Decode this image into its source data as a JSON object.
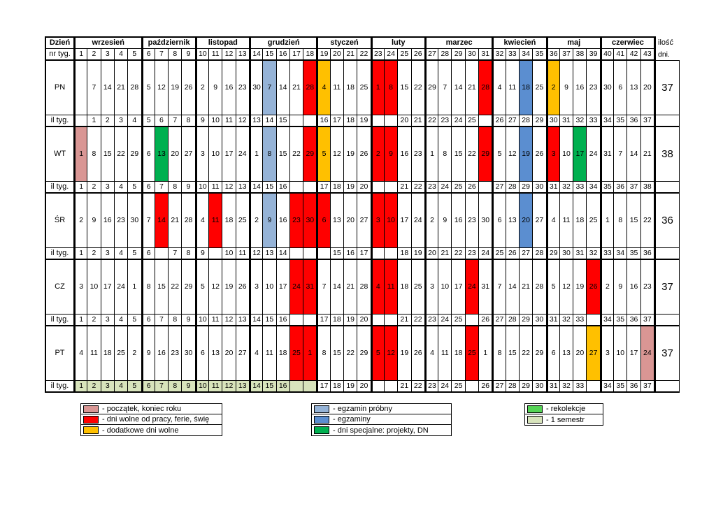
{
  "colors": {
    "pink": "#d99694",
    "red": "#ff0000",
    "orange": "#ffc000",
    "probny": "#95b3d7",
    "egzamin": "#5b8ed0",
    "green": "#00b050",
    "rekolekcje": "#55d455",
    "semestr": "#d8e4bc"
  },
  "table": {
    "corner_label": "Dzień",
    "nr_tyg_label": "nr tyg.",
    "il_tyg_label": "il tyg.",
    "ilosc_label": "ilość",
    "dni_label": "dni.",
    "months": [
      {
        "name": "wrzesień",
        "weeks": 5
      },
      {
        "name": "październik",
        "weeks": 4
      },
      {
        "name": "listopad",
        "weeks": 4
      },
      {
        "name": "grudzień",
        "weeks": 5
      },
      {
        "name": "styczeń",
        "weeks": 4
      },
      {
        "name": "luty",
        "weeks": 4
      },
      {
        "name": "marzec",
        "weeks": 5
      },
      {
        "name": "kwiecień",
        "weeks": 4
      },
      {
        "name": "maj",
        "weeks": 4
      },
      {
        "name": "czerwiec",
        "weeks": 4
      }
    ],
    "week_numbers": [
      "1",
      "2",
      "3",
      "4",
      "5",
      "6",
      "7",
      "8",
      "9",
      "10",
      "11",
      "12",
      "13",
      "14",
      "15",
      "16",
      "17",
      "18",
      "19",
      "20",
      "21",
      "22",
      "23",
      "24",
      "25",
      "26",
      "27",
      "28",
      "29",
      "30",
      "31",
      "32",
      "33",
      "34",
      "35",
      "36",
      "37",
      "38",
      "39",
      "40",
      "41",
      "42",
      "43"
    ],
    "days": [
      {
        "label": "PN",
        "total": "37",
        "values": [
          "",
          "7",
          "14",
          "21",
          "28",
          "5",
          "12",
          "19",
          "26",
          "2",
          "9",
          "16",
          "23",
          "30",
          "7",
          "14",
          "21",
          "28",
          "4",
          "11",
          "18",
          "25",
          "1",
          "8",
          "15",
          "22",
          "29",
          "7",
          "14",
          "21",
          "28",
          "4",
          "11",
          "18",
          "25",
          "2",
          "9",
          "16",
          "23",
          "30",
          "6",
          "13",
          "20"
        ],
        "colors": {
          "14": "probny",
          "17": "red",
          "18": "orange",
          "22": "red",
          "23": "red",
          "30": "red",
          "33": "egzamin",
          "35": "orange"
        },
        "il_tyg": [
          "",
          "1",
          "2",
          "3",
          "4",
          "5",
          "6",
          "7",
          "8",
          "9",
          "10",
          "11",
          "12",
          "13",
          "14",
          "15",
          "",
          "",
          "16",
          "17",
          "18",
          "19",
          "",
          "",
          "20",
          "21",
          "22",
          "23",
          "24",
          "25",
          "",
          "26",
          "27",
          "28",
          "29",
          "30",
          "31",
          "32",
          "33",
          "34",
          "35",
          "36",
          "37"
        ]
      },
      {
        "label": "WT",
        "total": "38",
        "values": [
          "1",
          "8",
          "15",
          "22",
          "29",
          "6",
          "13",
          "20",
          "27",
          "3",
          "10",
          "17",
          "24",
          "1",
          "8",
          "15",
          "22",
          "29",
          "5",
          "12",
          "19",
          "26",
          "2",
          "9",
          "16",
          "23",
          "1",
          "8",
          "15",
          "22",
          "29",
          "5",
          "12",
          "19",
          "26",
          "3",
          "10",
          "17",
          "24",
          "31",
          "7",
          "14",
          "21"
        ],
        "colors": {
          "0": "pink",
          "6": "green",
          "14": "probny",
          "17": "red",
          "18": "orange",
          "22": "red",
          "23": "red",
          "30": "red",
          "33": "egzamin",
          "35": "red",
          "37": "green"
        },
        "il_tyg": [
          "1",
          "2",
          "3",
          "4",
          "5",
          "6",
          "7",
          "8",
          "9",
          "10",
          "11",
          "12",
          "13",
          "14",
          "15",
          "16",
          "",
          "",
          "17",
          "18",
          "19",
          "20",
          "",
          "",
          "21",
          "22",
          "23",
          "24",
          "25",
          "26",
          "",
          "27",
          "28",
          "29",
          "30",
          "31",
          "32",
          "33",
          "34",
          "35",
          "36",
          "37",
          "38"
        ]
      },
      {
        "label": "ŚR",
        "total": "36",
        "values": [
          "2",
          "9",
          "16",
          "23",
          "30",
          "7",
          "14",
          "21",
          "28",
          "4",
          "11",
          "18",
          "25",
          "2",
          "9",
          "16",
          "23",
          "30",
          "6",
          "13",
          "20",
          "27",
          "3",
          "10",
          "17",
          "24",
          "2",
          "9",
          "16",
          "23",
          "30",
          "6",
          "13",
          "20",
          "27",
          "4",
          "11",
          "18",
          "25",
          "1",
          "8",
          "15",
          "22"
        ],
        "colors": {
          "6": "red",
          "10": "red",
          "14": "probny",
          "16": "red",
          "17": "red",
          "18": "red",
          "22": "red",
          "23": "red",
          "33": "egzamin"
        },
        "il_tyg": [
          "1",
          "2",
          "3",
          "4",
          "5",
          "6",
          "",
          "7",
          "8",
          "9",
          "",
          "10",
          "11",
          "12",
          "13",
          "14",
          "",
          "",
          "",
          "15",
          "16",
          "17",
          "",
          "",
          "18",
          "19",
          "20",
          "21",
          "22",
          "23",
          "24",
          "25",
          "26",
          "27",
          "28",
          "29",
          "30",
          "31",
          "32",
          "33",
          "34",
          "35",
          "36"
        ]
      },
      {
        "label": "CZ",
        "total": "37",
        "values": [
          "3",
          "10",
          "17",
          "24",
          "1",
          "8",
          "15",
          "22",
          "29",
          "5",
          "12",
          "19",
          "26",
          "3",
          "10",
          "17",
          "24",
          "31",
          "7",
          "14",
          "21",
          "28",
          "4",
          "11",
          "18",
          "25",
          "3",
          "10",
          "17",
          "24",
          "31",
          "7",
          "14",
          "21",
          "28",
          "5",
          "12",
          "19",
          "26",
          "2",
          "9",
          "16",
          "23"
        ],
        "colors": {
          "16": "red",
          "17": "red",
          "22": "red",
          "23": "red",
          "29": "red",
          "38": "red"
        },
        "il_tyg": [
          "1",
          "2",
          "3",
          "4",
          "5",
          "6",
          "7",
          "8",
          "9",
          "10",
          "11",
          "12",
          "13",
          "14",
          "15",
          "16",
          "",
          "",
          "17",
          "18",
          "19",
          "20",
          "",
          "",
          "21",
          "22",
          "23",
          "24",
          "25",
          "",
          "26",
          "27",
          "28",
          "29",
          "30",
          "31",
          "32",
          "33",
          "",
          "34",
          "35",
          "36",
          "37"
        ]
      },
      {
        "label": "PT",
        "total": "37",
        "values": [
          "4",
          "11",
          "18",
          "25",
          "2",
          "9",
          "16",
          "23",
          "30",
          "6",
          "13",
          "20",
          "27",
          "4",
          "11",
          "18",
          "25",
          "1",
          "8",
          "15",
          "22",
          "29",
          "5",
          "12",
          "19",
          "26",
          "4",
          "11",
          "18",
          "25",
          "1",
          "8",
          "15",
          "22",
          "29",
          "6",
          "13",
          "20",
          "27",
          "3",
          "10",
          "17",
          "24"
        ],
        "colors": {
          "16": "red",
          "17": "red",
          "22": "red",
          "23": "red",
          "29": "red",
          "38": "orange",
          "42": "pink"
        },
        "il_tyg": [
          "1",
          "2",
          "3",
          "4",
          "5",
          "6",
          "7",
          "8",
          "9",
          "10",
          "11",
          "12",
          "13",
          "14",
          "15",
          "16",
          "",
          "",
          "17",
          "18",
          "19",
          "20",
          "",
          "",
          "21",
          "22",
          "23",
          "24",
          "25",
          "",
          "26",
          "27",
          "28",
          "29",
          "30",
          "31",
          "32",
          "33",
          "",
          "34",
          "35",
          "36",
          "37"
        ],
        "semester_green_until": 18
      }
    ]
  },
  "legend": {
    "groups": [
      {
        "items": [
          {
            "color_key": "pink",
            "label": "- początek, koniec roku"
          },
          {
            "color_key": "red",
            "label": "- dni wolne od pracy, ferie, świę"
          },
          {
            "color_key": "orange",
            "label": "- dodatkowe dni wolne"
          }
        ]
      },
      {
        "items": [
          {
            "color_key": "probny",
            "label": "- egzamin próbny"
          },
          {
            "color_key": "egzamin",
            "label": "- egzaminy"
          },
          {
            "color_key": "green",
            "label": "- dni specjalne: projekty, DN"
          }
        ]
      },
      {
        "items": [
          {
            "color_key": "rekolekcje",
            "label": "- rekolekcje"
          },
          {
            "color_key": "semestr",
            "label": "- 1 semestr"
          }
        ]
      }
    ]
  }
}
